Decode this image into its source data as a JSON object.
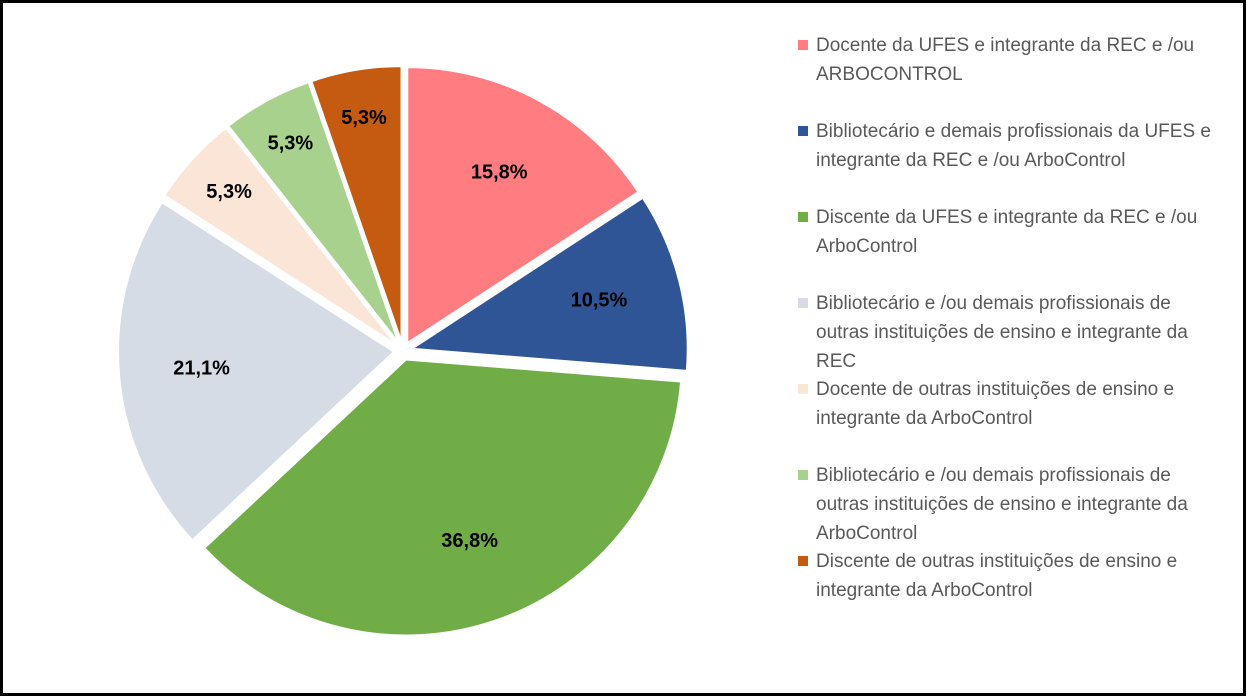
{
  "chart_data": {
    "type": "pie",
    "categories": [
      "Docente da UFES e integrante da REC e /ou ARBOCONTROL",
      "Bibliotecário e demais profissionais da UFES e integrante da REC e /ou ArboControl",
      "Discente da UFES e integrante da REC e /ou ArboControl",
      "Bibliotecário e /ou demais profissionais de outras instituições de ensino e integrante da REC",
      "Docente de outras instituições de ensino e integrante da ArboControl",
      "Bibliotecário e /ou demais profissionais de outras instituições de ensino e integrante da ArboControl",
      "Discente de outras instituições de ensino e integrante da ArboControl"
    ],
    "values": [
      15.8,
      10.5,
      36.8,
      21.1,
      5.3,
      5.3,
      5.3
    ],
    "value_labels": [
      "15,8%",
      "10,5%",
      "36,8%",
      "21,1%",
      "5,3%",
      "5,3%",
      "5,3%"
    ],
    "colors": [
      "#ff7c80",
      "#2f5597",
      "#70ad47",
      "#d6dce5",
      "#fbe5d6",
      "#a9d18e",
      "#c55a11"
    ],
    "legend": "right"
  }
}
